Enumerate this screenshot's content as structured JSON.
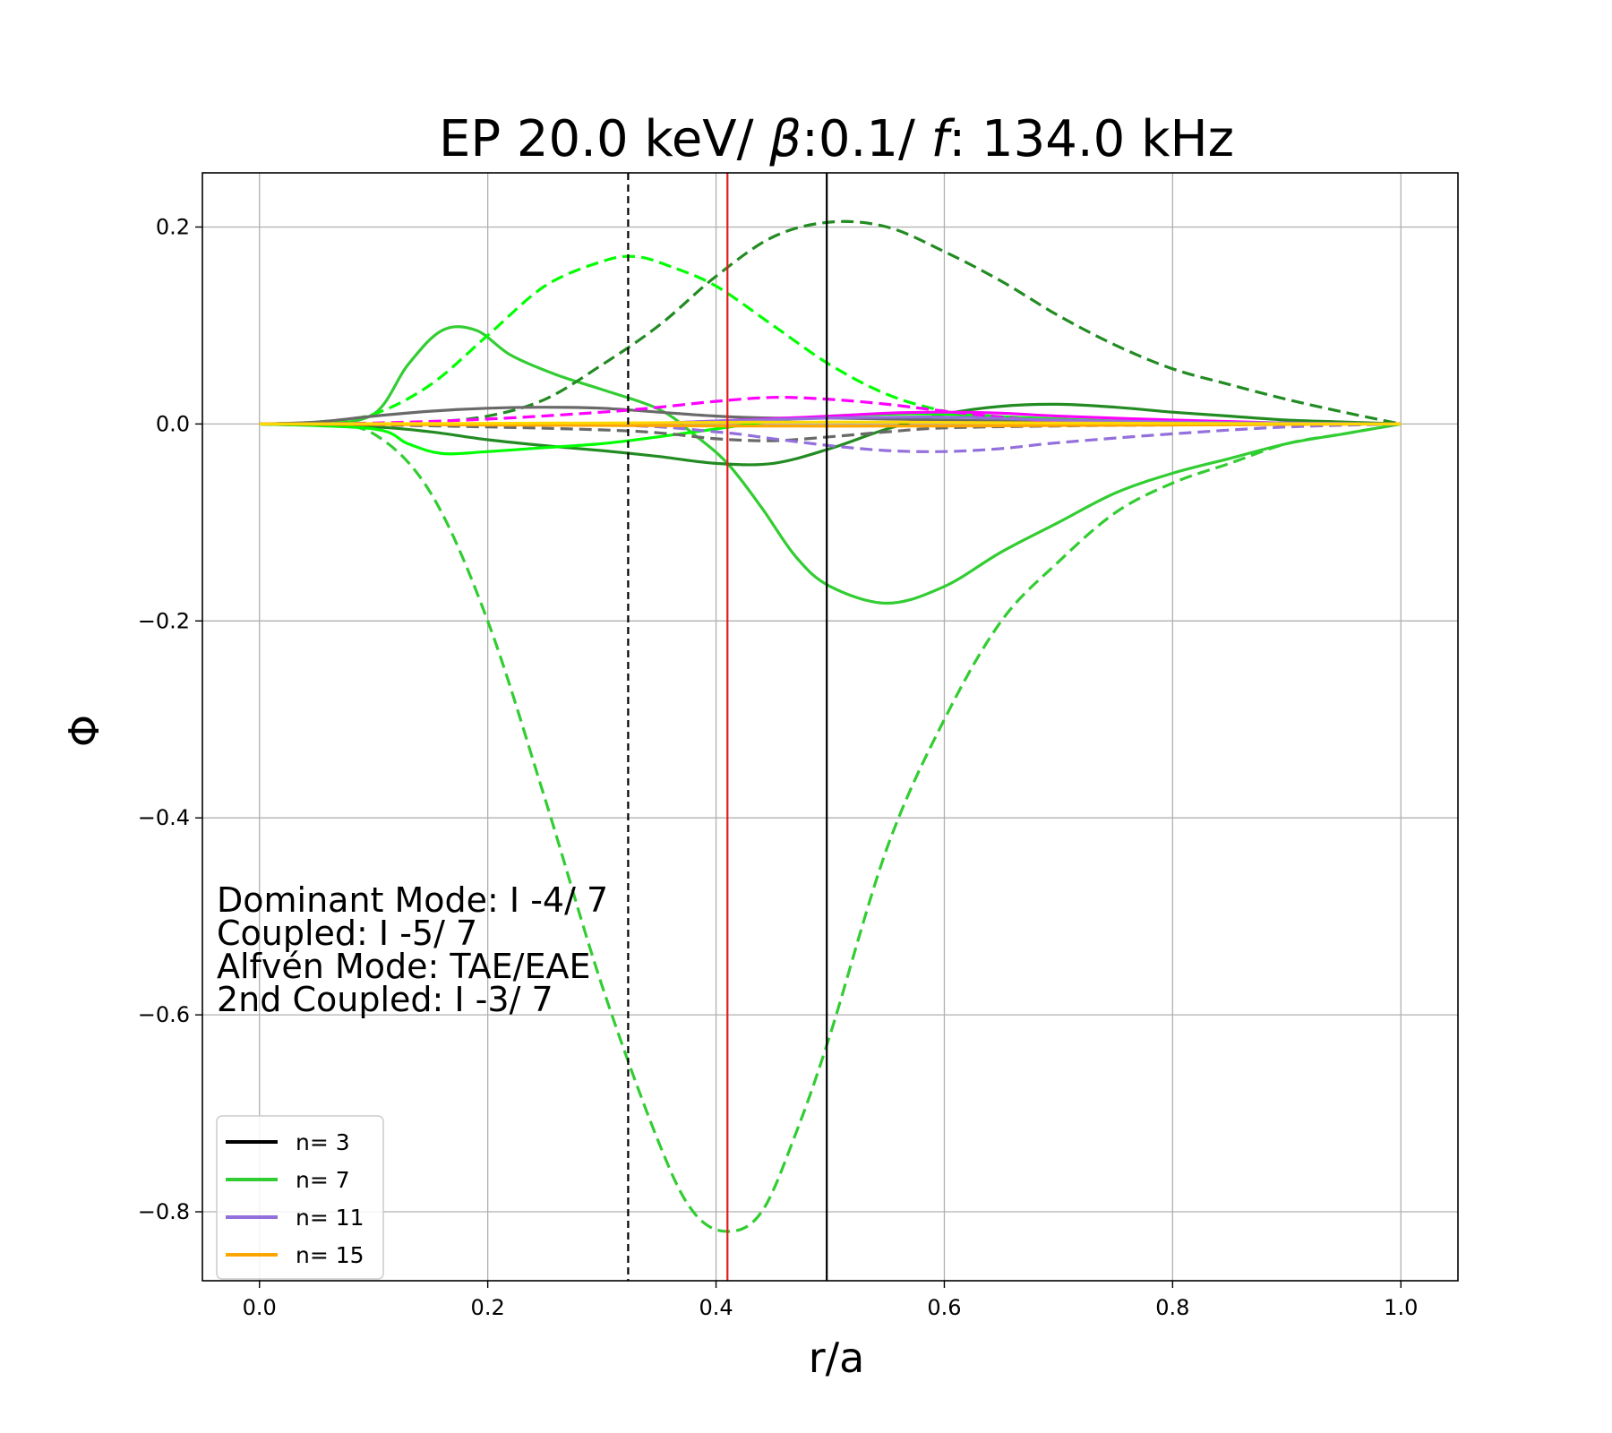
{
  "chart_data": {
    "type": "line",
    "title_parts": [
      "EP 20.0 keV/ ",
      "β",
      ":0.1/ ",
      "f",
      ": 134.0 kHz"
    ],
    "xlabel": "r/a",
    "ylabel": "Φ",
    "xlim": [
      -0.05,
      1.05
    ],
    "ylim": [
      -0.87,
      0.255
    ],
    "xticks": [
      0.0,
      0.2,
      0.4,
      0.6,
      0.8,
      1.0
    ],
    "xtick_labels": [
      "0.0",
      "0.2",
      "0.4",
      "0.6",
      "0.8",
      "1.0"
    ],
    "yticks": [
      0.2,
      0.0,
      -0.2,
      -0.4,
      -0.6,
      -0.8
    ],
    "ytick_labels": [
      "0.2",
      "0.0",
      "−0.2",
      "−0.4",
      "−0.6",
      "−0.8"
    ],
    "grid": true,
    "vertical_lines": [
      {
        "x": 0.323,
        "color": "#000000",
        "dashed": true
      },
      {
        "x": 0.41,
        "color": "#e41a1c",
        "dashed": false
      },
      {
        "x": 0.497,
        "color": "#000000",
        "dashed": false
      }
    ],
    "annotations": [
      "Dominant Mode: I -4/ 7",
      "Coupled: I -5/ 7",
      "Alfvén Mode: TAE/EAE",
      "2nd Coupled: I -3/ 7"
    ],
    "legend": {
      "placement": "lower-left",
      "entries": [
        {
          "label": "n= 3",
          "color": "#000000"
        },
        {
          "label": "n= 7",
          "color": "#32cd32"
        },
        {
          "label": "n= 11",
          "color": "#9370db"
        },
        {
          "label": "n= 15",
          "color": "#ffa500"
        }
      ]
    },
    "series": [
      {
        "color": "#32cd32",
        "dashed": true,
        "points": [
          [
            0,
            0
          ],
          [
            0.05,
            0
          ],
          [
            0.1,
            -0.01
          ],
          [
            0.15,
            -0.07
          ],
          [
            0.2,
            -0.2
          ],
          [
            0.25,
            -0.38
          ],
          [
            0.3,
            -0.57
          ],
          [
            0.35,
            -0.73
          ],
          [
            0.38,
            -0.8
          ],
          [
            0.41,
            -0.82
          ],
          [
            0.44,
            -0.8
          ],
          [
            0.47,
            -0.72
          ],
          [
            0.5,
            -0.62
          ],
          [
            0.55,
            -0.43
          ],
          [
            0.6,
            -0.3
          ],
          [
            0.65,
            -0.2
          ],
          [
            0.7,
            -0.14
          ],
          [
            0.75,
            -0.09
          ],
          [
            0.8,
            -0.06
          ],
          [
            0.85,
            -0.04
          ],
          [
            0.9,
            -0.02
          ],
          [
            0.95,
            -0.01
          ],
          [
            1.0,
            0
          ]
        ]
      },
      {
        "color": "#32cd32",
        "dashed": false,
        "points": [
          [
            0,
            0
          ],
          [
            0.05,
            0
          ],
          [
            0.1,
            0.01
          ],
          [
            0.13,
            0.06
          ],
          [
            0.16,
            0.095
          ],
          [
            0.19,
            0.095
          ],
          [
            0.22,
            0.07
          ],
          [
            0.26,
            0.05
          ],
          [
            0.3,
            0.035
          ],
          [
            0.35,
            0.015
          ],
          [
            0.38,
            -0.01
          ],
          [
            0.41,
            -0.04
          ],
          [
            0.44,
            -0.085
          ],
          [
            0.47,
            -0.135
          ],
          [
            0.5,
            -0.165
          ],
          [
            0.55,
            -0.182
          ],
          [
            0.6,
            -0.165
          ],
          [
            0.65,
            -0.13
          ],
          [
            0.7,
            -0.1
          ],
          [
            0.75,
            -0.07
          ],
          [
            0.8,
            -0.05
          ],
          [
            0.85,
            -0.035
          ],
          [
            0.9,
            -0.02
          ],
          [
            0.95,
            -0.01
          ],
          [
            1.0,
            0
          ]
        ]
      },
      {
        "color": "#228b22",
        "dashed": true,
        "points": [
          [
            0,
            0
          ],
          [
            0.1,
            0
          ],
          [
            0.15,
            0.002
          ],
          [
            0.2,
            0.008
          ],
          [
            0.25,
            0.025
          ],
          [
            0.3,
            0.06
          ],
          [
            0.35,
            0.1
          ],
          [
            0.4,
            0.15
          ],
          [
            0.45,
            0.19
          ],
          [
            0.5,
            0.205
          ],
          [
            0.55,
            0.2
          ],
          [
            0.6,
            0.175
          ],
          [
            0.65,
            0.145
          ],
          [
            0.7,
            0.11
          ],
          [
            0.75,
            0.08
          ],
          [
            0.8,
            0.056
          ],
          [
            0.85,
            0.04
          ],
          [
            0.9,
            0.025
          ],
          [
            0.95,
            0.012
          ],
          [
            1.0,
            0
          ]
        ]
      },
      {
        "color": "#228b22",
        "dashed": false,
        "points": [
          [
            0,
            0
          ],
          [
            0.1,
            -0.003
          ],
          [
            0.15,
            -0.008
          ],
          [
            0.2,
            -0.016
          ],
          [
            0.25,
            -0.022
          ],
          [
            0.3,
            -0.027
          ],
          [
            0.35,
            -0.033
          ],
          [
            0.4,
            -0.04
          ],
          [
            0.45,
            -0.04
          ],
          [
            0.5,
            -0.025
          ],
          [
            0.55,
            -0.005
          ],
          [
            0.6,
            0.01
          ],
          [
            0.65,
            0.018
          ],
          [
            0.7,
            0.02
          ],
          [
            0.75,
            0.017
          ],
          [
            0.8,
            0.012
          ],
          [
            0.85,
            0.008
          ],
          [
            0.9,
            0.004
          ],
          [
            0.95,
            0.002
          ],
          [
            1.0,
            0
          ]
        ]
      },
      {
        "color": "#00ff00",
        "dashed": true,
        "points": [
          [
            0,
            0
          ],
          [
            0.05,
            0.002
          ],
          [
            0.1,
            0.01
          ],
          [
            0.15,
            0.04
          ],
          [
            0.2,
            0.09
          ],
          [
            0.25,
            0.14
          ],
          [
            0.3,
            0.165
          ],
          [
            0.33,
            0.17
          ],
          [
            0.36,
            0.16
          ],
          [
            0.4,
            0.14
          ],
          [
            0.45,
            0.1
          ],
          [
            0.5,
            0.06
          ],
          [
            0.55,
            0.03
          ],
          [
            0.6,
            0.013
          ],
          [
            0.65,
            0.005
          ],
          [
            0.7,
            0.002
          ],
          [
            0.8,
            0.001
          ],
          [
            1.0,
            0
          ]
        ]
      },
      {
        "color": "#00ff00",
        "dashed": false,
        "points": [
          [
            0,
            0
          ],
          [
            0.1,
            -0.005
          ],
          [
            0.13,
            -0.02
          ],
          [
            0.16,
            -0.03
          ],
          [
            0.2,
            -0.028
          ],
          [
            0.25,
            -0.024
          ],
          [
            0.3,
            -0.02
          ],
          [
            0.35,
            -0.013
          ],
          [
            0.4,
            -0.005
          ],
          [
            0.45,
            0.003
          ],
          [
            0.5,
            0.008
          ],
          [
            0.55,
            0.01
          ],
          [
            0.6,
            0.01
          ],
          [
            0.7,
            0.005
          ],
          [
            0.8,
            0.002
          ],
          [
            1.0,
            0
          ]
        ]
      },
      {
        "color": "#696969",
        "dashed": false,
        "points": [
          [
            0,
            0
          ],
          [
            0.05,
            0.002
          ],
          [
            0.1,
            0.008
          ],
          [
            0.15,
            0.013
          ],
          [
            0.2,
            0.016
          ],
          [
            0.25,
            0.017
          ],
          [
            0.3,
            0.016
          ],
          [
            0.35,
            0.012
          ],
          [
            0.4,
            0.008
          ],
          [
            0.45,
            0.006
          ],
          [
            0.5,
            0.006
          ],
          [
            0.6,
            0.004
          ],
          [
            0.7,
            0.002
          ],
          [
            0.8,
            0.001
          ],
          [
            1.0,
            0
          ]
        ]
      },
      {
        "color": "#696969",
        "dashed": true,
        "points": [
          [
            0,
            0
          ],
          [
            0.1,
            -0.001
          ],
          [
            0.2,
            -0.003
          ],
          [
            0.3,
            -0.006
          ],
          [
            0.35,
            -0.009
          ],
          [
            0.4,
            -0.015
          ],
          [
            0.45,
            -0.017
          ],
          [
            0.5,
            -0.013
          ],
          [
            0.55,
            -0.008
          ],
          [
            0.6,
            -0.004
          ],
          [
            0.7,
            -0.002
          ],
          [
            0.8,
            -0.001
          ],
          [
            1.0,
            0
          ]
        ]
      },
      {
        "color": "#ff00ff",
        "dashed": true,
        "points": [
          [
            0,
            0
          ],
          [
            0.1,
            0.001
          ],
          [
            0.2,
            0.005
          ],
          [
            0.3,
            0.012
          ],
          [
            0.35,
            0.017
          ],
          [
            0.4,
            0.023
          ],
          [
            0.45,
            0.027
          ],
          [
            0.5,
            0.025
          ],
          [
            0.55,
            0.02
          ],
          [
            0.6,
            0.013
          ],
          [
            0.65,
            0.007
          ],
          [
            0.7,
            0.003
          ],
          [
            0.8,
            0.001
          ],
          [
            1.0,
            0
          ]
        ]
      },
      {
        "color": "#ff00ff",
        "dashed": false,
        "points": [
          [
            0,
            0
          ],
          [
            0.3,
            0
          ],
          [
            0.4,
            0.003
          ],
          [
            0.5,
            0.008
          ],
          [
            0.55,
            0.011
          ],
          [
            0.6,
            0.012
          ],
          [
            0.65,
            0.011
          ],
          [
            0.7,
            0.008
          ],
          [
            0.8,
            0.004
          ],
          [
            0.9,
            0.001
          ],
          [
            1.0,
            0
          ]
        ]
      },
      {
        "color": "#9370db",
        "dashed": true,
        "points": [
          [
            0,
            0
          ],
          [
            0.3,
            -0.001
          ],
          [
            0.4,
            -0.008
          ],
          [
            0.45,
            -0.015
          ],
          [
            0.5,
            -0.022
          ],
          [
            0.55,
            -0.027
          ],
          [
            0.6,
            -0.028
          ],
          [
            0.65,
            -0.025
          ],
          [
            0.7,
            -0.019
          ],
          [
            0.8,
            -0.01
          ],
          [
            0.9,
            -0.003
          ],
          [
            1.0,
            0
          ]
        ]
      },
      {
        "color": "#9370db",
        "dashed": false,
        "points": [
          [
            0,
            0
          ],
          [
            0.3,
            0
          ],
          [
            0.4,
            0.003
          ],
          [
            0.5,
            0.006
          ],
          [
            0.6,
            0.007
          ],
          [
            0.7,
            0.004
          ],
          [
            0.8,
            0.002
          ],
          [
            1.0,
            0
          ]
        ]
      },
      {
        "color": "#ffa500",
        "dashed": false,
        "points": [
          [
            0,
            0
          ],
          [
            0.2,
            -0.001
          ],
          [
            0.4,
            -0.002
          ],
          [
            0.6,
            -0.002
          ],
          [
            0.8,
            -0.001
          ],
          [
            1.0,
            0
          ]
        ]
      },
      {
        "color": "#ffd700",
        "dashed": false,
        "points": [
          [
            0,
            0
          ],
          [
            0.3,
            0.001
          ],
          [
            0.5,
            0.002
          ],
          [
            0.7,
            0.001
          ],
          [
            1.0,
            0
          ]
        ]
      }
    ]
  }
}
